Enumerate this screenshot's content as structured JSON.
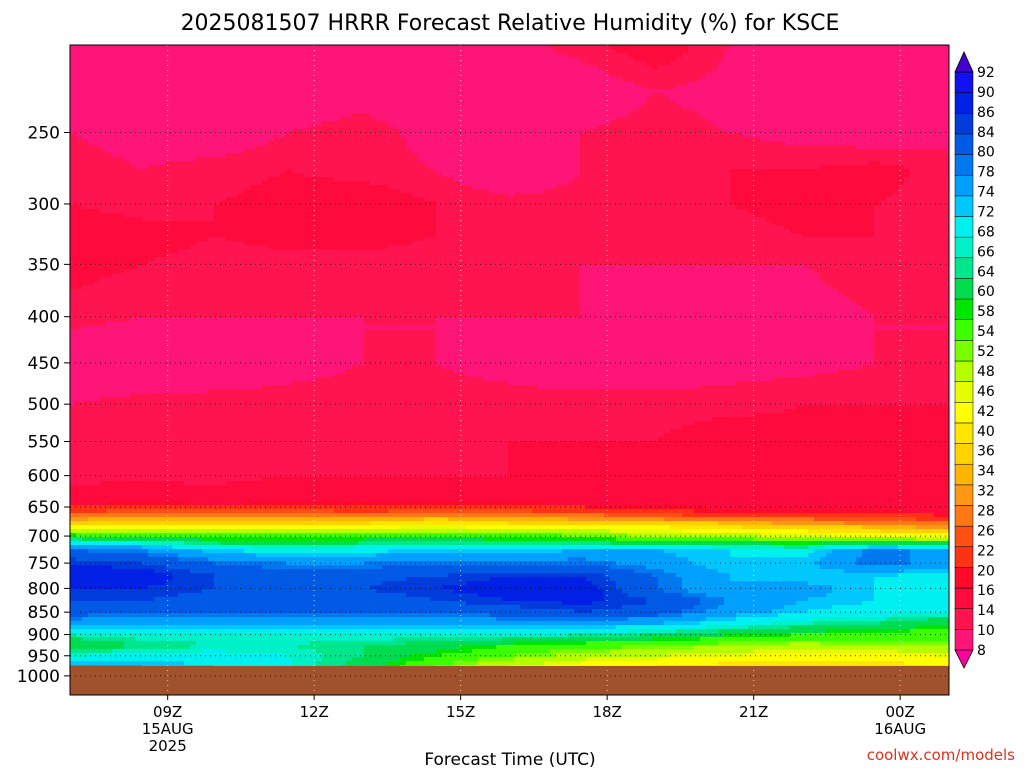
{
  "title": "2025081507 HRRR Forecast Relative Humidity (%) for KSCE",
  "credit": "coolwx.com/models",
  "chart_data": {
    "type": "heatmap",
    "title": "2025081507 HRRR Forecast Relative Humidity (%) for KSCE",
    "xlabel": "Forecast Time (UTC)",
    "ylabel": "",
    "y_scale": "log",
    "y_inverted": true,
    "ylim": [
      1050,
      200
    ],
    "yticks": [
      250,
      300,
      350,
      400,
      450,
      500,
      550,
      600,
      650,
      700,
      750,
      800,
      850,
      900,
      950,
      1000
    ],
    "xlim": [
      "2025-08-15 07Z",
      "2025-08-16 01Z"
    ],
    "xticks": [
      {
        "label": "09Z",
        "sub": [
          "15AUG",
          "2025"
        ]
      },
      {
        "label": "12Z",
        "sub": []
      },
      {
        "label": "15Z",
        "sub": []
      },
      {
        "label": "18Z",
        "sub": []
      },
      {
        "label": "21Z",
        "sub": []
      },
      {
        "label": "00Z",
        "sub": [
          "16AUG"
        ]
      }
    ],
    "grid": true,
    "ground_below_hPa": 975,
    "colorbar": {
      "levels": [
        8,
        10,
        14,
        16,
        20,
        22,
        26,
        28,
        32,
        34,
        36,
        40,
        42,
        46,
        48,
        52,
        54,
        58,
        60,
        64,
        66,
        68,
        72,
        74,
        78,
        80,
        84,
        86,
        90,
        92
      ],
      "colors": [
        "#ff00a0",
        "#ff1478",
        "#ff1450",
        "#ff0a3c",
        "#ff0a28",
        "#ff3214",
        "#ff5014",
        "#ff7814",
        "#ff9614",
        "#ffb400",
        "#ffd200",
        "#ffe600",
        "#ffff00",
        "#e6ff00",
        "#b4ff00",
        "#78ff00",
        "#3cff00",
        "#00e600",
        "#00dc50",
        "#00e68c",
        "#00f0c8",
        "#00f0f0",
        "#00c8ff",
        "#00a0ff",
        "#0078f0",
        "#005ae6",
        "#003cdc",
        "#0020e6",
        "#1010f0",
        "#4400d0"
      ]
    },
    "rows": [
      {
        "p": 200,
        "rh": [
          12,
          11,
          13,
          14,
          12,
          11,
          13,
          15,
          18,
          14,
          12,
          11,
          13
        ]
      },
      {
        "p": 225,
        "rh": [
          13,
          12,
          11,
          12,
          13,
          12,
          11,
          12,
          14,
          13,
          12,
          11,
          12
        ]
      },
      {
        "p": 250,
        "rh": [
          14,
          13,
          12,
          14,
          15,
          13,
          12,
          14,
          15,
          14,
          13,
          12,
          13
        ]
      },
      {
        "p": 275,
        "rh": [
          15,
          14,
          15,
          16,
          15,
          14,
          11,
          14,
          15,
          16,
          16,
          17,
          15
        ]
      },
      {
        "p": 300,
        "rh": [
          16,
          15,
          16,
          17,
          18,
          16,
          15,
          15,
          16,
          16,
          17,
          16,
          15
        ]
      },
      {
        "p": 325,
        "rh": [
          18,
          17,
          16,
          17,
          17,
          16,
          16,
          15,
          15,
          15,
          16,
          16,
          15
        ]
      },
      {
        "p": 350,
        "rh": [
          17,
          16,
          15,
          15,
          15,
          15,
          15,
          14,
          14,
          14,
          14,
          15,
          15
        ]
      },
      {
        "p": 400,
        "rh": [
          15,
          14,
          14,
          14,
          14,
          14,
          14,
          14,
          13,
          13,
          13,
          14,
          14
        ]
      },
      {
        "p": 450,
        "rh": [
          11,
          11,
          12,
          13,
          14,
          14,
          13,
          12,
          12,
          13,
          13,
          14,
          14
        ]
      },
      {
        "p": 500,
        "rh": [
          14,
          15,
          15,
          15,
          15,
          15,
          15,
          15,
          15,
          15,
          16,
          16,
          16
        ]
      },
      {
        "p": 550,
        "rh": [
          15,
          15,
          16,
          16,
          15,
          15,
          16,
          16,
          16,
          18,
          17,
          17,
          19
        ]
      },
      {
        "p": 600,
        "rh": [
          15,
          15,
          15,
          16,
          16,
          16,
          16,
          16,
          16,
          16,
          17,
          17,
          17
        ]
      },
      {
        "p": 640,
        "rh": [
          18,
          19,
          18,
          19,
          19,
          20,
          19,
          18,
          18,
          17,
          17,
          17,
          17
        ]
      },
      {
        "p": 660,
        "rh": [
          27,
          28,
          28,
          28,
          27,
          28,
          28,
          26,
          24,
          22,
          21,
          21,
          20
        ]
      },
      {
        "p": 680,
        "rh": [
          40,
          42,
          40,
          41,
          42,
          44,
          42,
          41,
          40,
          38,
          35,
          33,
          30
        ]
      },
      {
        "p": 700,
        "rh": [
          60,
          58,
          56,
          56,
          57,
          58,
          56,
          55,
          52,
          50,
          48,
          46,
          44
        ]
      },
      {
        "p": 725,
        "rh": [
          80,
          78,
          72,
          70,
          71,
          72,
          72,
          74,
          74,
          72,
          70,
          80,
          76
        ]
      },
      {
        "p": 750,
        "rh": [
          86,
          84,
          80,
          78,
          78,
          80,
          80,
          80,
          76,
          72,
          73,
          80,
          76
        ]
      },
      {
        "p": 775,
        "rh": [
          89,
          88,
          84,
          82,
          83,
          84,
          86,
          86,
          80,
          74,
          72,
          72,
          70
        ]
      },
      {
        "p": 800,
        "rh": [
          86,
          86,
          84,
          83,
          84,
          86,
          88,
          88,
          80,
          74,
          76,
          72,
          68
        ]
      },
      {
        "p": 825,
        "rh": [
          84,
          84,
          82,
          82,
          82,
          84,
          86,
          87,
          84,
          78,
          74,
          72,
          70
        ]
      },
      {
        "p": 850,
        "rh": [
          82,
          80,
          80,
          80,
          80,
          80,
          82,
          84,
          82,
          76,
          72,
          70,
          68
        ]
      },
      {
        "p": 875,
        "rh": [
          76,
          74,
          74,
          74,
          74,
          74,
          76,
          76,
          74,
          70,
          66,
          64,
          60
        ]
      },
      {
        "p": 900,
        "rh": [
          66,
          68,
          68,
          68,
          68,
          68,
          68,
          66,
          64,
          60,
          58,
          56,
          56
        ]
      },
      {
        "p": 925,
        "rh": [
          60,
          64,
          66,
          66,
          64,
          62,
          58,
          56,
          54,
          52,
          50,
          52,
          52
        ]
      },
      {
        "p": 950,
        "rh": [
          68,
          70,
          70,
          68,
          64,
          58,
          54,
          50,
          48,
          46,
          44,
          44,
          46
        ]
      },
      {
        "p": 975,
        "rh": [
          74,
          74,
          72,
          68,
          62,
          54,
          48,
          44,
          42,
          40,
          40,
          40,
          42
        ]
      }
    ]
  }
}
